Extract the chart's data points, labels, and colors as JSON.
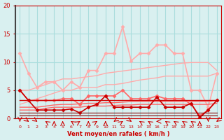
{
  "x": [
    0,
    1,
    2,
    3,
    4,
    5,
    6,
    7,
    8,
    9,
    10,
    11,
    12,
    13,
    14,
    15,
    16,
    17,
    18,
    19,
    20,
    21,
    22,
    23
  ],
  "background_color": "#d9f0f0",
  "grid_color": "#aadddd",
  "xlabel": "Vent moyen/en rafales ( km/h )",
  "xlabel_color": "#cc0000",
  "ylim": [
    0,
    20
  ],
  "yticks": [
    0,
    5,
    10,
    15,
    20
  ],
  "series": [
    {
      "name": "light_upper",
      "color": "#ffaaaa",
      "linewidth": 1.2,
      "marker": "D",
      "markersize": 2.5,
      "data": [
        11.5,
        8.0,
        5.5,
        6.5,
        6.5,
        5.0,
        6.5,
        5.5,
        8.5,
        8.5,
        11.5,
        11.5,
        16.2,
        10.2,
        11.5,
        11.5,
        13.0,
        13.0,
        11.5,
        11.5,
        5.0,
        5.0,
        2.0,
        8.0
      ]
    },
    {
      "name": "light_diag1",
      "color": "#ffaaaa",
      "linewidth": 1.0,
      "marker": null,
      "markersize": 0,
      "data": [
        5.0,
        5.0,
        5.5,
        6.0,
        6.5,
        7.0,
        7.0,
        7.2,
        7.4,
        7.6,
        8.0,
        8.2,
        8.4,
        8.6,
        8.8,
        9.0,
        9.2,
        9.4,
        9.6,
        9.8,
        9.9,
        9.9,
        9.9,
        8.5
      ]
    },
    {
      "name": "light_diag2",
      "color": "#ffaaaa",
      "linewidth": 1.0,
      "marker": null,
      "markersize": 0,
      "data": [
        2.5,
        3.0,
        3.5,
        4.0,
        4.5,
        5.0,
        5.0,
        5.5,
        5.5,
        5.5,
        6.0,
        6.0,
        6.2,
        6.5,
        6.8,
        7.0,
        7.2,
        7.5,
        7.5,
        7.5,
        7.5,
        7.5,
        7.5,
        8.0
      ]
    },
    {
      "name": "mid_upper",
      "color": "#ff6666",
      "linewidth": 1.2,
      "marker": "D",
      "markersize": 2.5,
      "data": [
        5.0,
        3.2,
        3.2,
        3.2,
        3.2,
        3.5,
        3.5,
        2.5,
        4.0,
        4.0,
        4.0,
        4.0,
        5.0,
        3.5,
        3.5,
        3.5,
        4.0,
        3.5,
        3.5,
        3.5,
        2.5,
        0.5,
        1.5,
        3.2
      ]
    },
    {
      "name": "mid_diag1",
      "color": "#ff6666",
      "linewidth": 1.0,
      "marker": null,
      "markersize": 0,
      "data": [
        2.0,
        2.0,
        2.0,
        2.2,
        2.4,
        2.5,
        2.5,
        2.6,
        2.7,
        2.7,
        2.8,
        2.8,
        2.9,
        3.0,
        3.0,
        3.0,
        3.0,
        3.0,
        3.0,
        3.0,
        3.0,
        3.0,
        3.0,
        3.2
      ]
    },
    {
      "name": "mid_diag2",
      "color": "#ff6666",
      "linewidth": 1.0,
      "marker": null,
      "markersize": 0,
      "data": [
        1.5,
        1.5,
        1.5,
        1.8,
        2.0,
        2.0,
        2.0,
        2.0,
        2.2,
        2.2,
        2.2,
        2.3,
        2.4,
        2.4,
        2.5,
        2.5,
        2.5,
        2.5,
        2.5,
        2.5,
        2.5,
        2.5,
        2.5,
        2.7
      ]
    },
    {
      "name": "dark_upper",
      "color": "#cc0000",
      "linewidth": 1.2,
      "marker": "D",
      "markersize": 2.5,
      "data": [
        5.0,
        3.2,
        1.5,
        1.5,
        1.5,
        1.5,
        1.7,
        1.0,
        2.0,
        2.5,
        4.0,
        2.0,
        2.0,
        2.0,
        2.0,
        2.0,
        3.8,
        2.0,
        2.0,
        2.0,
        2.7,
        0.2,
        1.5,
        3.2
      ]
    },
    {
      "name": "dark_flat1",
      "color": "#cc0000",
      "linewidth": 1.0,
      "marker": null,
      "markersize": 0,
      "data": [
        3.2,
        3.2,
        3.2,
        3.2,
        3.2,
        3.2,
        3.2,
        3.2,
        3.2,
        3.2,
        3.2,
        3.2,
        3.2,
        3.2,
        3.2,
        3.2,
        3.2,
        3.2,
        3.2,
        3.2,
        3.2,
        3.2,
        3.2,
        3.2
      ]
    },
    {
      "name": "dark_flat2",
      "color": "#880000",
      "linewidth": 0.8,
      "marker": null,
      "markersize": 0,
      "data": [
        1.0,
        1.0,
        1.0,
        1.0,
        1.0,
        1.0,
        1.0,
        1.0,
        1.0,
        1.0,
        1.0,
        1.0,
        1.0,
        1.0,
        1.0,
        1.0,
        1.0,
        1.0,
        1.0,
        1.0,
        1.0,
        1.0,
        1.0,
        1.0
      ]
    },
    {
      "name": "dark_flat3",
      "color": "#880000",
      "linewidth": 0.8,
      "marker": null,
      "markersize": 0,
      "data": [
        0.5,
        0.5,
        0.5,
        0.5,
        0.5,
        0.5,
        0.5,
        0.5,
        0.5,
        0.5,
        0.5,
        0.5,
        0.5,
        0.5,
        0.5,
        0.5,
        0.5,
        0.5,
        0.5,
        0.5,
        0.5,
        0.5,
        0.5,
        0.5
      ]
    }
  ],
  "wind_arrows": [
    0.0,
    45.0,
    45.0,
    225.0,
    180.0,
    180.0,
    225.0,
    135.0,
    180.0,
    135.0,
    180.0,
    315.0,
    135.0,
    45.0,
    225.0,
    225.0,
    270.0,
    225.0,
    225.0,
    225.0,
    225.0,
    180.0,
    0.0,
    315.0
  ]
}
